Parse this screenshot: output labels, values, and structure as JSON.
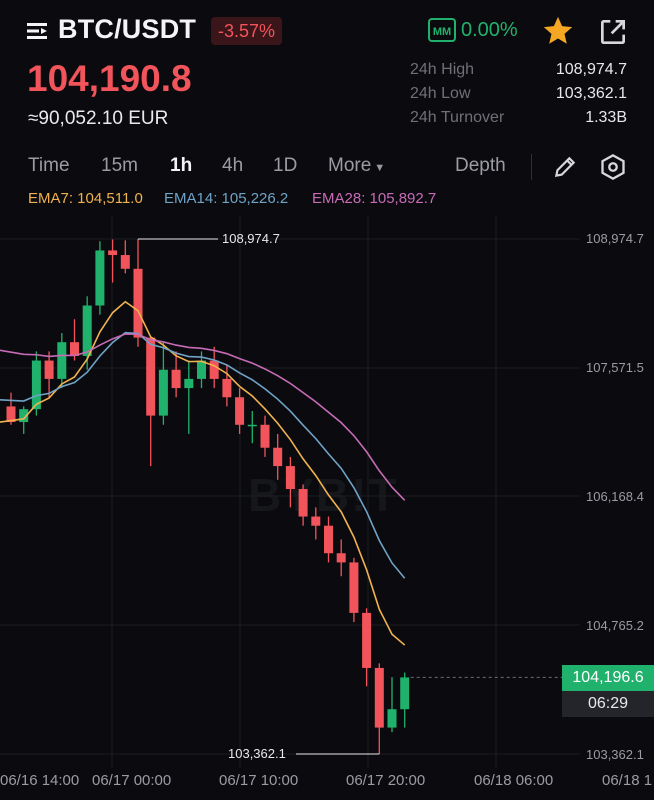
{
  "header": {
    "pair": "BTC/USDT",
    "change": "-3.57%",
    "mm_label": "MM",
    "mm_value": "0.00%",
    "icons": [
      "menu-icon",
      "star-icon",
      "share-icon"
    ]
  },
  "price": {
    "last": "104,190.8",
    "eur": "≈90,052.10 EUR"
  },
  "stats": [
    {
      "label": "24h High",
      "value": "108,974.7"
    },
    {
      "label": "24h Low",
      "value": "103,362.1"
    },
    {
      "label": "24h Turnover",
      "value": "1.33B"
    }
  ],
  "toolbar": {
    "time": "Time",
    "m15": "15m",
    "h1": "1h",
    "h4": "4h",
    "d1": "1D",
    "more": "More",
    "depth": "Depth"
  },
  "ema": {
    "ema7": "EMA7: 104,511.0",
    "ema14": "EMA14: 105,226.2",
    "ema28": "EMA28: 105,892.7"
  },
  "colors": {
    "up": "#20b26c",
    "down": "#f2545b",
    "ema7": "#f0b24f",
    "ema14": "#6fa3c7",
    "ema28": "#c76bb6"
  },
  "chart_data": {
    "type": "candlestick",
    "y_ticks": [
      "108,974.7",
      "107,571.5",
      "106,168.4",
      "104,765.2",
      "103,362.1"
    ],
    "ylim": [
      103362.1,
      108974.7
    ],
    "x_ticks": [
      "06/16 14:00",
      "06/17 00:00",
      "06/17 10:00",
      "06/17 20:00",
      "06/18 06:00",
      "06/18 1"
    ],
    "high_marker": "108,974.7",
    "low_marker": "103,362.1",
    "current_price": "104,196.6",
    "countdown": "06:29",
    "candles": [
      [
        107150,
        107300,
        106950,
        106980
      ],
      [
        106980,
        107150,
        106850,
        107120
      ],
      [
        107120,
        107750,
        107050,
        107650
      ],
      [
        107650,
        107750,
        107250,
        107450
      ],
      [
        107450,
        107950,
        107350,
        107850
      ],
      [
        107850,
        108100,
        107650,
        107700
      ],
      [
        107700,
        108350,
        107550,
        108250
      ],
      [
        108250,
        108950,
        108150,
        108850
      ],
      [
        108850,
        108970,
        108500,
        108800
      ],
      [
        108800,
        108960,
        108600,
        108650
      ],
      [
        108650,
        108974.7,
        107800,
        107900
      ],
      [
        107900,
        107850,
        106500,
        107050
      ],
      [
        107050,
        107850,
        106950,
        107550
      ],
      [
        107550,
        107750,
        107250,
        107350
      ],
      [
        107350,
        107650,
        106850,
        107450
      ],
      [
        107450,
        107750,
        107350,
        107650
      ],
      [
        107650,
        107800,
        107350,
        107450
      ],
      [
        107450,
        107600,
        107150,
        107250
      ],
      [
        107250,
        107350,
        106850,
        106950
      ],
      [
        106950,
        107100,
        106750,
        106950
      ],
      [
        106950,
        107050,
        106600,
        106700
      ],
      [
        106700,
        106850,
        106350,
        106500
      ],
      [
        106500,
        106600,
        106050,
        106250
      ],
      [
        106250,
        106300,
        105850,
        105950
      ],
      [
        105950,
        106050,
        105700,
        105850
      ],
      [
        105850,
        105950,
        105450,
        105550
      ],
      [
        105550,
        105700,
        105300,
        105450
      ],
      [
        105450,
        105500,
        104800,
        104900
      ],
      [
        104900,
        104950,
        104100,
        104300
      ],
      [
        104300,
        104350,
        103362.1,
        103650
      ],
      [
        103650,
        104200,
        103600,
        103850
      ],
      [
        103850,
        104250,
        103650,
        104196.6
      ]
    ]
  }
}
